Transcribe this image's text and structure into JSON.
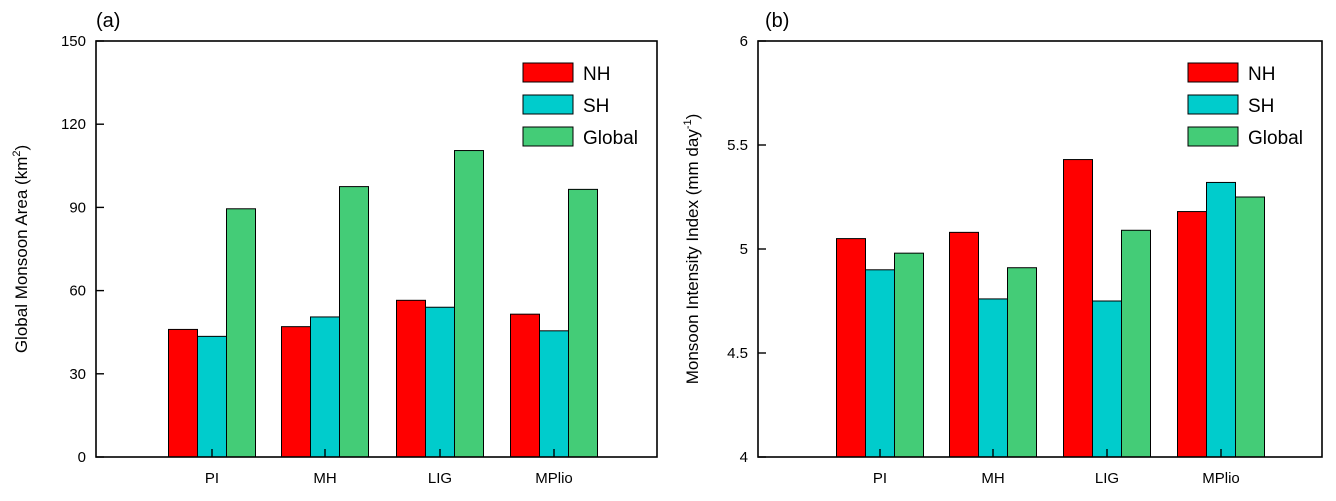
{
  "colors": {
    "NH": "#ff0000",
    "SH": "#00cccc",
    "Global": "#44cc77"
  },
  "chart_data": [
    {
      "type": "bar",
      "panel": "(a)",
      "title": "",
      "xlabel": "",
      "ylabel": "Global Monsoon Area (km",
      "ylabel_sup": "2",
      "ylabel_tail": ")",
      "ylim": [
        0,
        150
      ],
      "yticks": [
        "0",
        "30",
        "60",
        "90",
        "120",
        "150"
      ],
      "yticks_values": [
        0,
        30,
        60,
        90,
        120,
        150
      ],
      "categories": [
        "PI",
        "MH",
        "LIG",
        "MPlio"
      ],
      "legend_position": "top-right",
      "series": [
        {
          "name": "NH",
          "values": [
            46,
            47,
            56.5,
            51.5
          ]
        },
        {
          "name": "SH",
          "values": [
            43.5,
            50.5,
            54,
            45.5
          ]
        },
        {
          "name": "Global",
          "values": [
            89.5,
            97.5,
            110.5,
            96.5
          ]
        }
      ]
    },
    {
      "type": "bar",
      "panel": "(b)",
      "title": "",
      "xlabel": "",
      "ylabel": "Monsoon Intensity Index (mm day",
      "ylabel_sup": "-1",
      "ylabel_tail": ")",
      "ylim": [
        4,
        6
      ],
      "yticks": [
        "4",
        "4.5",
        "5",
        "5.5",
        "6"
      ],
      "yticks_values": [
        4,
        4.5,
        5,
        5.5,
        6
      ],
      "categories": [
        "PI",
        "MH",
        "LIG",
        "MPlio"
      ],
      "legend_position": "top-right",
      "series": [
        {
          "name": "NH",
          "values": [
            5.05,
            5.08,
            5.43,
            5.18
          ]
        },
        {
          "name": "SH",
          "values": [
            4.9,
            4.76,
            4.75,
            5.32
          ]
        },
        {
          "name": "Global",
          "values": [
            4.98,
            4.91,
            5.09,
            5.25
          ]
        }
      ]
    }
  ]
}
